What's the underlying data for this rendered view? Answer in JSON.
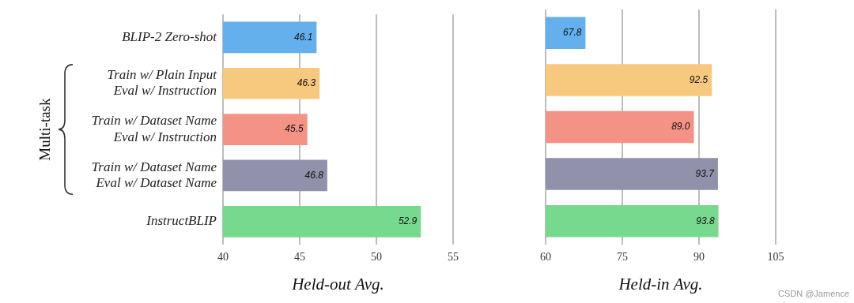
{
  "chart_data": [
    {
      "type": "bar",
      "orientation": "horizontal",
      "categories": [
        "BLIP-2 Zero-shot",
        [
          "Train w/ Plain Input",
          "Eval w/ Instruction"
        ],
        [
          "Train w/ Dataset Name",
          "Eval w/ Instruction"
        ],
        [
          "Train w/ Dataset Name",
          "Eval w/ Dataset Name"
        ],
        "InstructBLIP"
      ],
      "values": [
        46.1,
        46.3,
        45.5,
        46.8,
        52.9
      ],
      "value_labels": [
        "46.1",
        "46.3",
        "45.5",
        "46.8",
        "52.9"
      ],
      "colors": [
        "#64b0ec",
        "#f7c97e",
        "#f59286",
        "#9191ab",
        "#77d98e"
      ],
      "xlim": [
        40,
        55
      ],
      "xticks": [
        40,
        45,
        50,
        55
      ],
      "xlabel": "Held-out Avg.",
      "grid": true,
      "data_labels": true,
      "annotations": [
        "Multi-task"
      ]
    },
    {
      "type": "bar",
      "orientation": "horizontal",
      "categories": [
        "BLIP-2 Zero-shot",
        [
          "Train w/ Plain Input",
          "Eval w/ Instruction"
        ],
        [
          "Train w/ Dataset Name",
          "Eval w/ Instruction"
        ],
        [
          "Train w/ Dataset Name",
          "Eval w/ Dataset Name"
        ],
        "InstructBLIP"
      ],
      "values": [
        67.8,
        92.5,
        89.0,
        93.7,
        93.8
      ],
      "value_labels": [
        "67.8",
        "92.5",
        "89.0",
        "93.7",
        "93.8"
      ],
      "colors": [
        "#64b0ec",
        "#f7c97e",
        "#f59286",
        "#9191ab",
        "#77d98e"
      ],
      "xlim": [
        60,
        105
      ],
      "xticks": [
        60,
        75,
        90,
        105
      ],
      "xlabel": "Held-in Avg.",
      "grid": true,
      "data_labels": true,
      "tick_labels": "x",
      "annotations": [
        "CSDN @Jamence"
      ]
    }
  ]
}
